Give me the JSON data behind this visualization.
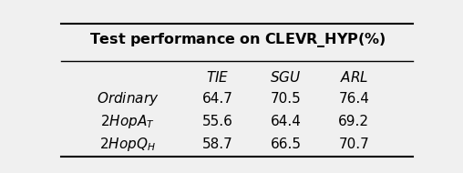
{
  "title": "Test performance on CLEVR\\_HYP(%)",
  "col_headers": [
    "TIE",
    "SGU",
    "ARL"
  ],
  "rows": [
    [
      "Ordinary",
      "64.7",
      "70.5",
      "76.4"
    ],
    [
      "2HopA",
      "T",
      "55.6",
      "64.4",
      "69.2"
    ],
    [
      "2HopQ",
      "H",
      "58.7",
      "66.5",
      "70.7"
    ]
  ],
  "bg_color": "#f0f0f0",
  "figsize": [
    5.08,
    1.9
  ],
  "dpi": 100
}
